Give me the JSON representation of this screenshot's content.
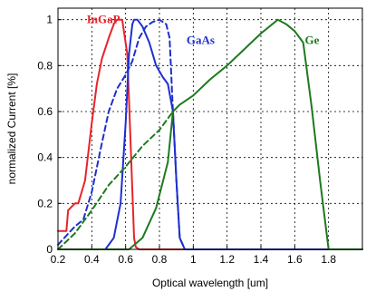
{
  "chart_data": {
    "type": "line",
    "xlabel": "Optical wavelength [um]",
    "ylabel": "normalized Current [%]",
    "xlim": [
      0.2,
      2.0
    ],
    "ylim": [
      0,
      1.05
    ],
    "grid": true,
    "xticks": [
      "0.2",
      "0.4",
      "0.6",
      "0.8",
      "1",
      "1.2",
      "1.4",
      "1.6",
      "1.8"
    ],
    "xtick_values": [
      0.2,
      0.4,
      0.6,
      0.8,
      1.0,
      1.2,
      1.4,
      1.6,
      1.8
    ],
    "yticks": [
      "0",
      "0.2",
      "0.4",
      "0.6",
      "0.8",
      "1"
    ],
    "ytick_values": [
      0,
      0.2,
      0.4,
      0.6,
      0.8,
      1.0
    ],
    "annotations": [
      {
        "text": "InGaP",
        "x": 0.37,
        "y": 1.0,
        "color": "#e8232a"
      },
      {
        "text": "GaAs",
        "x": 0.96,
        "y": 0.91,
        "color": "#1f2fd0"
      },
      {
        "text": "Ge",
        "x": 1.66,
        "y": 0.91,
        "color": "#1d7a1d"
      }
    ],
    "series": [
      {
        "color": "#e8232a",
        "dash": "solid",
        "x": [
          0.2,
          0.25,
          0.26,
          0.3,
          0.32,
          0.36,
          0.4,
          0.43,
          0.46,
          0.5,
          0.53,
          0.55,
          0.58,
          0.61,
          0.63,
          0.65,
          0.66,
          0.68,
          2.0
        ],
        "y": [
          0.08,
          0.08,
          0.17,
          0.2,
          0.2,
          0.3,
          0.55,
          0.72,
          0.83,
          0.92,
          0.98,
          1.0,
          1.0,
          0.85,
          0.45,
          0.05,
          0.01,
          0.0,
          0.0
        ]
      },
      {
        "color": "#1f2fd0",
        "dash": "solid",
        "x": [
          0.2,
          0.48,
          0.53,
          0.57,
          0.6,
          0.62,
          0.64,
          0.65,
          0.67,
          0.7,
          0.74,
          0.78,
          0.82,
          0.85,
          0.88,
          0.9,
          0.92,
          0.95,
          2.0
        ],
        "y": [
          0.0,
          0.0,
          0.05,
          0.2,
          0.55,
          0.85,
          0.98,
          1.0,
          1.0,
          0.97,
          0.9,
          0.8,
          0.75,
          0.72,
          0.6,
          0.3,
          0.05,
          0.0,
          0.0
        ]
      },
      {
        "color": "#1f2fd0",
        "dash": "dashed",
        "x": [
          0.2,
          0.25,
          0.3,
          0.35,
          0.4,
          0.45,
          0.5,
          0.55,
          0.6,
          0.64,
          0.68,
          0.72,
          0.76,
          0.8,
          0.84,
          0.86,
          0.88,
          0.9,
          0.92,
          0.95
        ],
        "y": [
          0.02,
          0.06,
          0.1,
          0.13,
          0.25,
          0.43,
          0.6,
          0.7,
          0.76,
          0.82,
          0.92,
          0.97,
          0.99,
          1.0,
          0.98,
          0.92,
          0.6,
          0.3,
          0.05,
          0.0
        ]
      },
      {
        "color": "#1d7a1d",
        "dash": "dashed",
        "x": [
          0.2,
          0.3,
          0.4,
          0.5,
          0.6,
          0.7,
          0.8,
          0.88
        ],
        "y": [
          0.0,
          0.07,
          0.17,
          0.28,
          0.36,
          0.45,
          0.52,
          0.6
        ]
      },
      {
        "color": "#1d7a1d",
        "dash": "solid",
        "x": [
          0.2,
          0.62,
          0.7,
          0.78,
          0.85,
          0.88,
          0.92,
          1.0,
          1.1,
          1.2,
          1.3,
          1.4,
          1.5,
          1.55,
          1.6,
          1.65,
          1.7,
          1.75,
          1.8,
          2.0
        ],
        "y": [
          0.0,
          0.0,
          0.05,
          0.18,
          0.38,
          0.6,
          0.63,
          0.67,
          0.74,
          0.8,
          0.87,
          0.94,
          1.0,
          0.98,
          0.95,
          0.9,
          0.62,
          0.3,
          0.0,
          0.0
        ]
      }
    ]
  }
}
